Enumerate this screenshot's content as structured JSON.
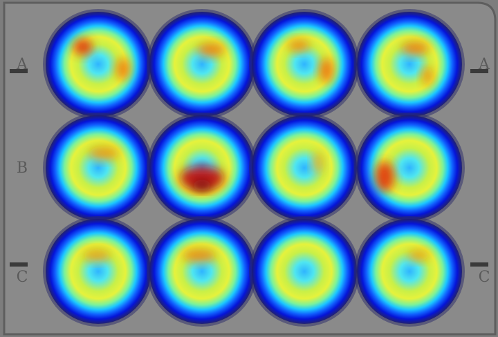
{
  "plate": {
    "row_labels_left": [
      "A",
      "B",
      "C"
    ],
    "row_labels_right": [
      "A",
      "C"
    ]
  }
}
